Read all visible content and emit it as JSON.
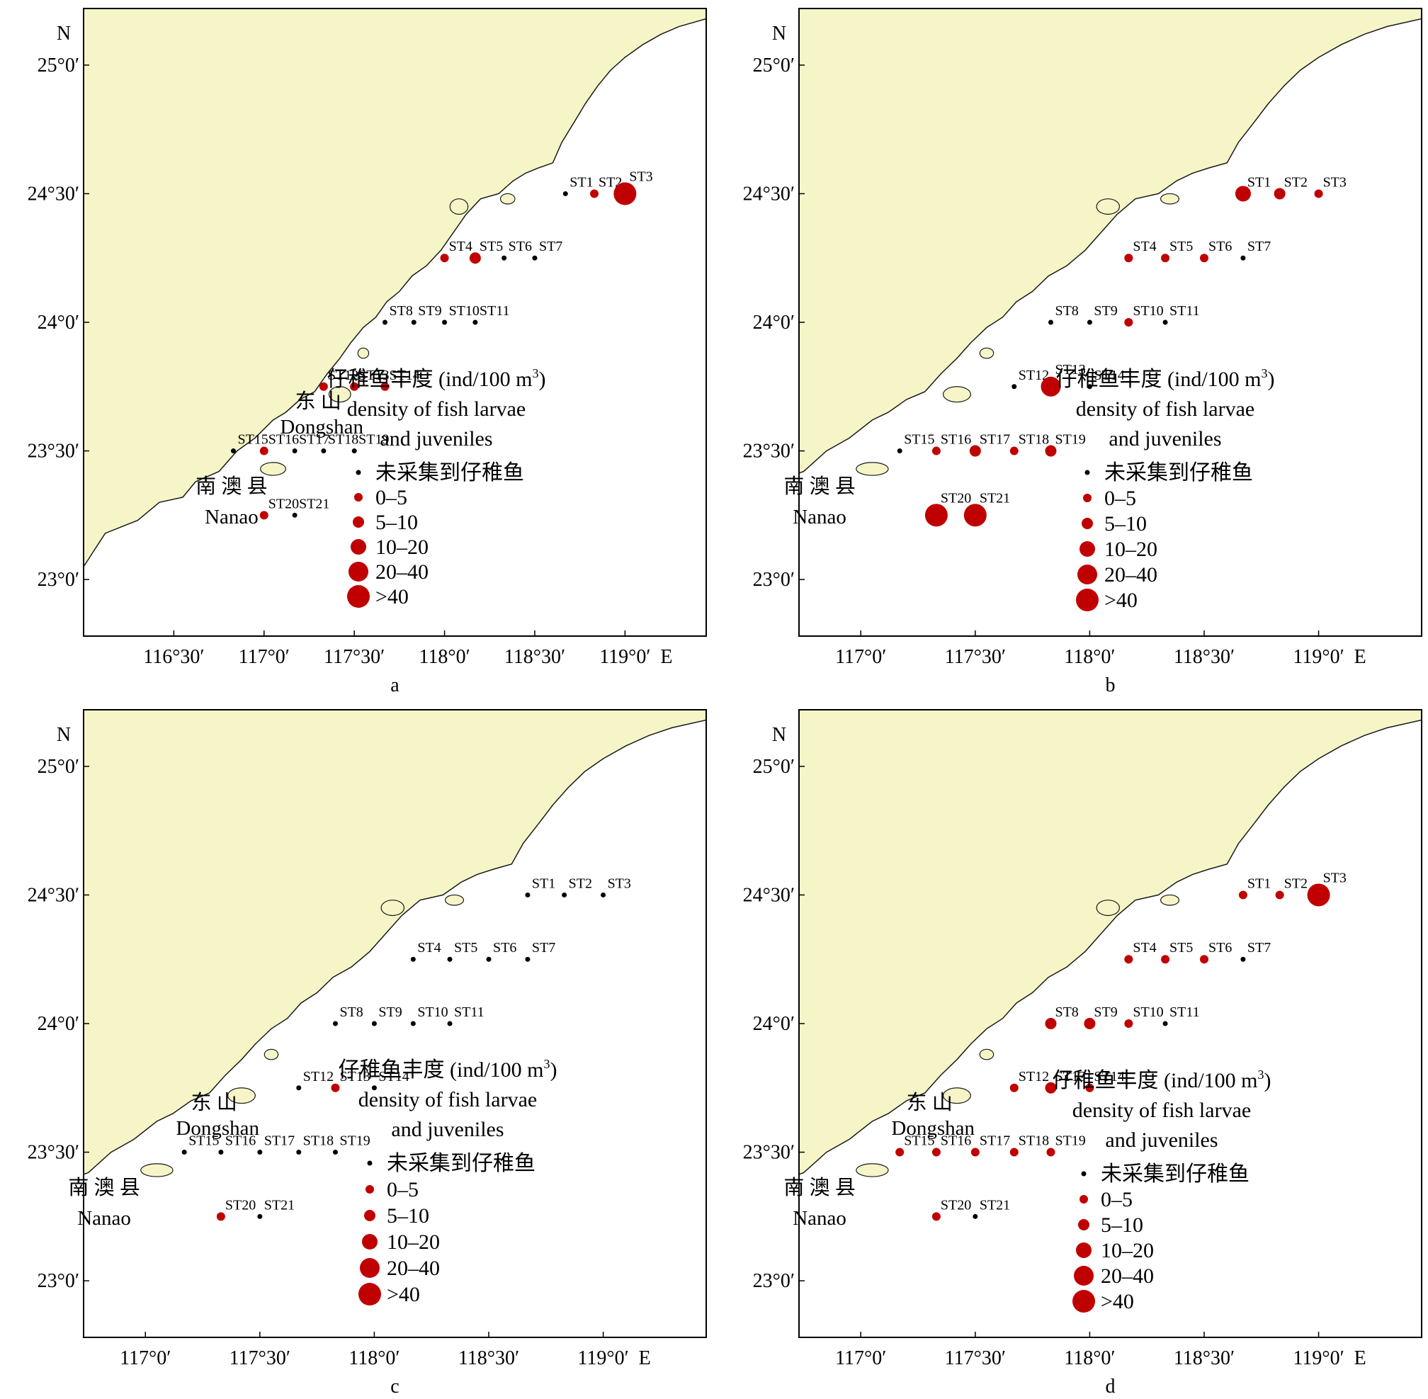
{
  "colors": {
    "land": "#f6f5c8",
    "coast": "#1a1a1a",
    "sea": "#ffffff",
    "sampled": "#c00000",
    "unsampled": "#000000"
  },
  "common": {
    "north": "N",
    "east_suffix": "E",
    "lat_labels": [
      "25°0′",
      "24°30′",
      "24°0′",
      "23°30′",
      "23°0′"
    ],
    "place_dongshan_cn": "东 山",
    "place_dongshan_en": "Dongshan",
    "place_nanao_cn": "南 澳 县",
    "place_nanao_en": "Nanao",
    "legend": {
      "title_cn": "仔稚鱼丰度 (ind/100 m",
      "title_sup": "3",
      "title_close": ")",
      "title_en_1": "density of fish larvae",
      "title_en_2": "and juveniles",
      "class_0": "未采集到仔稚鱼",
      "class_1": "0–5",
      "class_2": "5–10",
      "class_3": "10–20",
      "class_4": "20–40",
      "class_5": ">40"
    }
  },
  "panels": [
    {
      "label": "a",
      "lon_labels": [
        "116°30′",
        "117°0′",
        "117°30′",
        "118°0′",
        "118°30′",
        "119°0′"
      ],
      "lon_values": [
        116.5,
        117.0,
        117.5,
        118.0,
        118.5,
        119.0
      ],
      "lon_min": 116.0,
      "lon_max": 119.45,
      "stations": [
        {
          "name": "ST1",
          "lon": 118.67,
          "lat": 24.5,
          "cls": 0
        },
        {
          "name": "ST2",
          "lon": 118.83,
          "lat": 24.5,
          "cls": 1
        },
        {
          "name": "ST3",
          "lon": 119.0,
          "lat": 24.5,
          "cls": 5
        },
        {
          "name": "ST4",
          "lon": 118.0,
          "lat": 24.25,
          "cls": 1
        },
        {
          "name": "ST5",
          "lon": 118.17,
          "lat": 24.25,
          "cls": 2
        },
        {
          "name": "ST6",
          "lon": 118.33,
          "lat": 24.25,
          "cls": 0
        },
        {
          "name": "ST7",
          "lon": 118.5,
          "lat": 24.25,
          "cls": 0
        },
        {
          "name": "ST8",
          "lon": 117.67,
          "lat": 24.0,
          "cls": 0
        },
        {
          "name": "ST9",
          "lon": 117.83,
          "lat": 24.0,
          "cls": 0
        },
        {
          "name": "ST10",
          "lon": 118.0,
          "lat": 24.0,
          "cls": 0
        },
        {
          "name": "ST11",
          "lon": 118.17,
          "lat": 24.0,
          "cls": 0
        },
        {
          "name": "ST12",
          "lon": 117.33,
          "lat": 23.75,
          "cls": 1
        },
        {
          "name": "ST13",
          "lon": 117.5,
          "lat": 23.75,
          "cls": 1
        },
        {
          "name": "ST14",
          "lon": 117.67,
          "lat": 23.75,
          "cls": 1
        },
        {
          "name": "ST15",
          "lon": 116.83,
          "lat": 23.5,
          "cls": 0
        },
        {
          "name": "ST16",
          "lon": 117.0,
          "lat": 23.5,
          "cls": 1
        },
        {
          "name": "ST17",
          "lon": 117.17,
          "lat": 23.5,
          "cls": 0
        },
        {
          "name": "ST18",
          "lon": 117.33,
          "lat": 23.5,
          "cls": 0
        },
        {
          "name": "ST19",
          "lon": 117.5,
          "lat": 23.5,
          "cls": 0
        },
        {
          "name": "ST20",
          "lon": 117.0,
          "lat": 23.25,
          "cls": 1
        },
        {
          "name": "ST21",
          "lon": 117.17,
          "lat": 23.25,
          "cls": 0
        }
      ]
    },
    {
      "label": "b",
      "lon_labels": [
        "117°0′",
        "117°30′",
        "118°0′",
        "118°30′",
        "119°0′"
      ],
      "lon_values": [
        117.0,
        117.5,
        118.0,
        118.5,
        119.0
      ],
      "lon_min": 116.73,
      "lon_max": 119.45,
      "stations": [
        {
          "name": "ST1",
          "lon": 118.67,
          "lat": 24.5,
          "cls": 3
        },
        {
          "name": "ST2",
          "lon": 118.83,
          "lat": 24.5,
          "cls": 2
        },
        {
          "name": "ST3",
          "lon": 119.0,
          "lat": 24.5,
          "cls": 1
        },
        {
          "name": "ST4",
          "lon": 118.17,
          "lat": 24.25,
          "cls": 1
        },
        {
          "name": "ST5",
          "lon": 118.33,
          "lat": 24.25,
          "cls": 1
        },
        {
          "name": "ST6",
          "lon": 118.5,
          "lat": 24.25,
          "cls": 1
        },
        {
          "name": "ST7",
          "lon": 118.67,
          "lat": 24.25,
          "cls": 0
        },
        {
          "name": "ST8",
          "lon": 117.83,
          "lat": 24.0,
          "cls": 0
        },
        {
          "name": "ST9",
          "lon": 118.0,
          "lat": 24.0,
          "cls": 0
        },
        {
          "name": "ST10",
          "lon": 118.17,
          "lat": 24.0,
          "cls": 1
        },
        {
          "name": "ST11",
          "lon": 118.33,
          "lat": 24.0,
          "cls": 0
        },
        {
          "name": "ST12",
          "lon": 117.67,
          "lat": 23.75,
          "cls": 0
        },
        {
          "name": "ST13",
          "lon": 117.83,
          "lat": 23.75,
          "cls": 4
        },
        {
          "name": "ST14",
          "lon": 118.0,
          "lat": 23.75,
          "cls": 0
        },
        {
          "name": "ST15",
          "lon": 117.17,
          "lat": 23.5,
          "cls": 0
        },
        {
          "name": "ST16",
          "lon": 117.33,
          "lat": 23.5,
          "cls": 1
        },
        {
          "name": "ST17",
          "lon": 117.5,
          "lat": 23.5,
          "cls": 2
        },
        {
          "name": "ST18",
          "lon": 117.67,
          "lat": 23.5,
          "cls": 1
        },
        {
          "name": "ST19",
          "lon": 117.83,
          "lat": 23.5,
          "cls": 2
        },
        {
          "name": "ST20",
          "lon": 117.33,
          "lat": 23.25,
          "cls": 5
        },
        {
          "name": "ST21",
          "lon": 117.5,
          "lat": 23.25,
          "cls": 5
        }
      ]
    },
    {
      "label": "c",
      "lon_labels": [
        "117°0′",
        "117°30′",
        "118°0′",
        "118°30′",
        "119°0′"
      ],
      "lon_values": [
        117.0,
        117.5,
        118.0,
        118.5,
        119.0
      ],
      "lon_min": 116.73,
      "lon_max": 119.45,
      "stations": [
        {
          "name": "ST1",
          "lon": 118.67,
          "lat": 24.5,
          "cls": 0
        },
        {
          "name": "ST2",
          "lon": 118.83,
          "lat": 24.5,
          "cls": 0
        },
        {
          "name": "ST3",
          "lon": 119.0,
          "lat": 24.5,
          "cls": 0
        },
        {
          "name": "ST4",
          "lon": 118.17,
          "lat": 24.25,
          "cls": 0
        },
        {
          "name": "ST5",
          "lon": 118.33,
          "lat": 24.25,
          "cls": 0
        },
        {
          "name": "ST6",
          "lon": 118.5,
          "lat": 24.25,
          "cls": 0
        },
        {
          "name": "ST7",
          "lon": 118.67,
          "lat": 24.25,
          "cls": 0
        },
        {
          "name": "ST8",
          "lon": 117.83,
          "lat": 24.0,
          "cls": 0
        },
        {
          "name": "ST9",
          "lon": 118.0,
          "lat": 24.0,
          "cls": 0
        },
        {
          "name": "ST10",
          "lon": 118.17,
          "lat": 24.0,
          "cls": 0
        },
        {
          "name": "ST11",
          "lon": 118.33,
          "lat": 24.0,
          "cls": 0
        },
        {
          "name": "ST12",
          "lon": 117.67,
          "lat": 23.75,
          "cls": 0
        },
        {
          "name": "ST13",
          "lon": 117.83,
          "lat": 23.75,
          "cls": 1
        },
        {
          "name": "ST14",
          "lon": 118.0,
          "lat": 23.75,
          "cls": 0
        },
        {
          "name": "ST15",
          "lon": 117.17,
          "lat": 23.5,
          "cls": 0
        },
        {
          "name": "ST16",
          "lon": 117.33,
          "lat": 23.5,
          "cls": 0
        },
        {
          "name": "ST17",
          "lon": 117.5,
          "lat": 23.5,
          "cls": 0
        },
        {
          "name": "ST18",
          "lon": 117.67,
          "lat": 23.5,
          "cls": 0
        },
        {
          "name": "ST19",
          "lon": 117.83,
          "lat": 23.5,
          "cls": 0
        },
        {
          "name": "ST20",
          "lon": 117.33,
          "lat": 23.25,
          "cls": 1
        },
        {
          "name": "ST21",
          "lon": 117.5,
          "lat": 23.25,
          "cls": 0
        }
      ]
    },
    {
      "label": "d",
      "lon_labels": [
        "117°0′",
        "117°30′",
        "118°0′",
        "118°30′",
        "119°0′"
      ],
      "lon_values": [
        117.0,
        117.5,
        118.0,
        118.5,
        119.0
      ],
      "lon_min": 116.73,
      "lon_max": 119.45,
      "stations": [
        {
          "name": "ST1",
          "lon": 118.67,
          "lat": 24.5,
          "cls": 1
        },
        {
          "name": "ST2",
          "lon": 118.83,
          "lat": 24.5,
          "cls": 1
        },
        {
          "name": "ST3",
          "lon": 119.0,
          "lat": 24.5,
          "cls": 5
        },
        {
          "name": "ST4",
          "lon": 118.17,
          "lat": 24.25,
          "cls": 1
        },
        {
          "name": "ST5",
          "lon": 118.33,
          "lat": 24.25,
          "cls": 1
        },
        {
          "name": "ST6",
          "lon": 118.5,
          "lat": 24.25,
          "cls": 1
        },
        {
          "name": "ST7",
          "lon": 118.67,
          "lat": 24.25,
          "cls": 0
        },
        {
          "name": "ST8",
          "lon": 117.83,
          "lat": 24.0,
          "cls": 2
        },
        {
          "name": "ST9",
          "lon": 118.0,
          "lat": 24.0,
          "cls": 2
        },
        {
          "name": "ST10",
          "lon": 118.17,
          "lat": 24.0,
          "cls": 1
        },
        {
          "name": "ST11",
          "lon": 118.33,
          "lat": 24.0,
          "cls": 0
        },
        {
          "name": "ST12",
          "lon": 117.67,
          "lat": 23.75,
          "cls": 1
        },
        {
          "name": "ST13",
          "lon": 117.83,
          "lat": 23.75,
          "cls": 2
        },
        {
          "name": "ST14",
          "lon": 118.0,
          "lat": 23.75,
          "cls": 1
        },
        {
          "name": "ST15",
          "lon": 117.17,
          "lat": 23.5,
          "cls": 1
        },
        {
          "name": "ST16",
          "lon": 117.33,
          "lat": 23.5,
          "cls": 1
        },
        {
          "name": "ST17",
          "lon": 117.5,
          "lat": 23.5,
          "cls": 1
        },
        {
          "name": "ST18",
          "lon": 117.67,
          "lat": 23.5,
          "cls": 1
        },
        {
          "name": "ST19",
          "lon": 117.83,
          "lat": 23.5,
          "cls": 1
        },
        {
          "name": "ST20",
          "lon": 117.33,
          "lat": 23.25,
          "cls": 1
        },
        {
          "name": "ST21",
          "lon": 117.5,
          "lat": 23.25,
          "cls": 0
        }
      ]
    }
  ]
}
